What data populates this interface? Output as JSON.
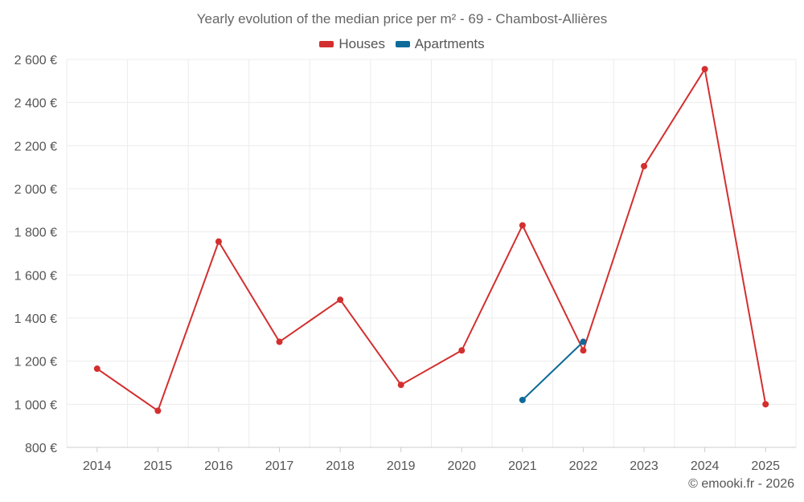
{
  "chart_data": {
    "type": "line",
    "title": "Yearly evolution of the median price per m² - 69 - Chambost-Allières",
    "xlabel": "",
    "ylabel": "",
    "categories": [
      "2014",
      "2015",
      "2016",
      "2017",
      "2018",
      "2019",
      "2020",
      "2021",
      "2022",
      "2023",
      "2024",
      "2025"
    ],
    "y_ticks": [
      800,
      1000,
      1200,
      1400,
      1600,
      1800,
      2000,
      2200,
      2400,
      2600
    ],
    "y_tick_labels": [
      "800 €",
      "1 000 €",
      "1 200 €",
      "1 400 €",
      "1 600 €",
      "1 800 €",
      "2 000 €",
      "2 200 €",
      "2 400 €",
      "2 600 €"
    ],
    "ylim": [
      800,
      2600
    ],
    "grid": true,
    "legend_position": "top-center",
    "series": [
      {
        "name": "Houses",
        "color": "#d32f2f",
        "values": [
          1165,
          970,
          1755,
          1290,
          1485,
          1090,
          1250,
          1830,
          1250,
          2105,
          2555,
          1000
        ]
      },
      {
        "name": "Apartments",
        "color": "#0d6a99",
        "values": [
          null,
          null,
          null,
          null,
          null,
          null,
          null,
          1020,
          1290,
          null,
          null,
          null
        ]
      }
    ]
  },
  "footer": {
    "credit": "© emooki.fr - 2026"
  }
}
